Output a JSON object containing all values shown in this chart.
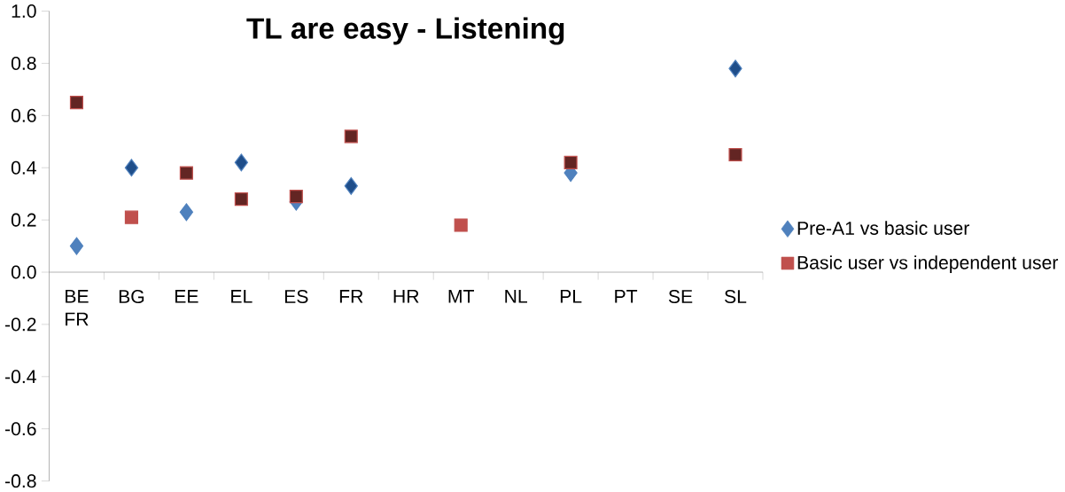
{
  "chart_data": {
    "type": "scatter",
    "title": "TL are easy - Listening",
    "categories": [
      "BE FR",
      "BG",
      "EE",
      "EL",
      "ES",
      "FR",
      "HR",
      "MT",
      "NL",
      "PL",
      "PT",
      "SE",
      "SL"
    ],
    "series": [
      {
        "name": "Pre-A1 vs basic user",
        "color": "#4f81bd",
        "marker": "diamond",
        "values": [
          0.1,
          0.4,
          0.23,
          0.42,
          0.27,
          0.33,
          null,
          null,
          null,
          0.38,
          null,
          null,
          0.78
        ],
        "colors": [
          "#4f81bd",
          "#1f4e8a",
          "#4f81bd",
          "#1f4e8a",
          "#4f81bd",
          "#1f4e8a",
          null,
          null,
          null,
          "#4f81bd",
          null,
          null,
          "#1f4e8a"
        ]
      },
      {
        "name": "Basic user vs independent user",
        "color": "#c0504d",
        "marker": "square",
        "values": [
          0.65,
          0.21,
          0.38,
          0.28,
          0.29,
          0.52,
          null,
          0.18,
          null,
          0.42,
          null,
          null,
          0.45
        ],
        "colors": [
          "#632523",
          "#c0504d",
          "#632523",
          "#632523",
          "#632523",
          "#632523",
          null,
          "#c0504d",
          null,
          "#632523",
          null,
          null,
          "#632523"
        ]
      }
    ],
    "ylim": [
      -0.8,
      1.0
    ],
    "yticks": [
      {
        "value": -0.8,
        "label": "-0.8"
      },
      {
        "value": -0.6,
        "label": "-0.6"
      },
      {
        "value": -0.4,
        "label": "-0.4"
      },
      {
        "value": -0.2,
        "label": "-0.2"
      },
      {
        "value": 0,
        "label": "0.0"
      },
      {
        "value": 0.2,
        "label": "0.2"
      },
      {
        "value": 0.4,
        "label": "0.4"
      },
      {
        "value": 0.6,
        "label": "0.6"
      },
      {
        "value": 0.8,
        "label": "0.8"
      },
      {
        "value": 1.0,
        "label": "1.0"
      }
    ],
    "legend": "right"
  }
}
